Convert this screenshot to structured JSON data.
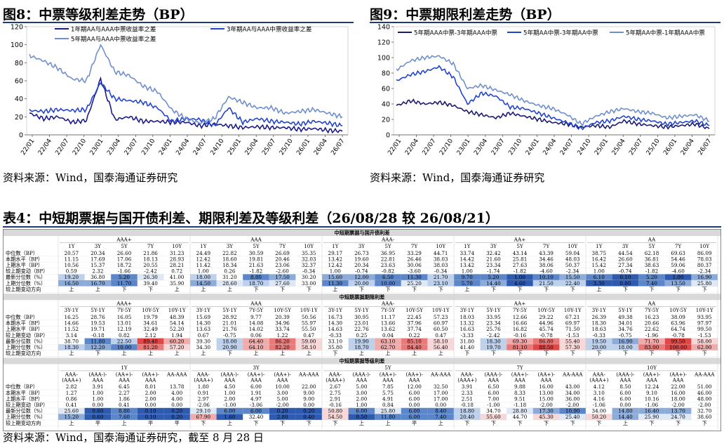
{
  "fig8": {
    "title": "图8：中票等级利差走势（BP）",
    "source": "资料来源：Wind，国泰海通证券研究",
    "chart_data": {
      "type": "line",
      "title": "",
      "xlabel": "",
      "ylabel": "",
      "ylim": [
        0,
        120
      ],
      "yticks": [
        0,
        20,
        40,
        60,
        80,
        100,
        120
      ],
      "xticks": [
        "22/01",
        "22/04",
        "22/07",
        "22/10",
        "23/01",
        "23/04",
        "23/07",
        "23/10",
        "24/01",
        "24/04",
        "24/07",
        "24/10",
        "25/01",
        "25/04",
        "25/07",
        "25/10",
        "26/01",
        "26/04",
        "26/07"
      ],
      "legend": "top",
      "series": [
        {
          "name": "1年期AA与AAA中票收益率之差",
          "color": "#1a1a8c",
          "values": [
            24,
            18,
            20,
            14,
            16,
            62,
            17,
            20,
            15,
            15,
            14,
            14,
            10,
            12,
            10,
            8,
            9,
            8,
            8,
            6,
            7,
            5,
            4
          ]
        },
        {
          "name": "3年期AA与AAA中票收益率之差",
          "color": "#2244cc",
          "values": [
            27,
            26,
            28,
            27,
            28,
            58,
            40,
            38,
            36,
            30,
            15,
            18,
            17,
            10,
            30,
            14,
            18,
            15,
            14,
            12,
            15,
            13,
            10
          ]
        },
        {
          "name": "5年期AA与AAA中票收益率之差",
          "color": "#6f8fcf",
          "values": [
            88,
            82,
            74,
            62,
            60,
            100,
            70,
            66,
            54,
            48,
            28,
            18,
            13,
            18,
            42,
            36,
            30,
            30,
            24,
            26,
            28,
            24,
            20
          ]
        }
      ]
    }
  },
  "fig9": {
    "title": "图9：中票期限利差走势（BP）",
    "source": "资料来源：Wind，国泰海通证券研究",
    "chart_data": {
      "type": "line",
      "title": "",
      "xlabel": "",
      "ylabel": "",
      "ylim": [
        0,
        140
      ],
      "yticks": [
        0,
        20,
        40,
        60,
        80,
        100,
        120,
        140
      ],
      "xticks": [
        "22/01",
        "22/04",
        "22/07",
        "22/10",
        "23/01",
        "23/04",
        "23/07",
        "23/10",
        "24/01",
        "24/04",
        "24/07",
        "24/10",
        "25/01",
        "25/04",
        "25/07",
        "25/10",
        "26/01",
        "26/04",
        "26/07"
      ],
      "legend": "top",
      "series": [
        {
          "name": "5年期AAA中票-3年期AAA中票",
          "color": "#1a1a6e",
          "values": [
            38,
            44,
            40,
            42,
            38,
            30,
            26,
            22,
            28,
            24,
            20,
            16,
            14,
            10,
            12,
            10,
            18,
            14,
            12,
            10,
            12,
            14,
            8
          ]
        },
        {
          "name": "5年期AA中票-3年期AA中票",
          "color": "#2244cc",
          "values": [
            70,
            78,
            82,
            88,
            75,
            40,
            54,
            50,
            36,
            34,
            28,
            22,
            16,
            8,
            16,
            18,
            24,
            20,
            18,
            14,
            16,
            18,
            12
          ]
        },
        {
          "name": "5年期AA中票-1年期AAA中票",
          "color": "#6f8fcf",
          "values": [
            84,
            96,
            100,
            102,
            92,
            60,
            64,
            58,
            52,
            44,
            38,
            34,
            26,
            14,
            24,
            30,
            34,
            30,
            28,
            22,
            24,
            26,
            18
          ]
        }
      ]
    }
  },
  "table4": {
    "title": "表4：中短期票据与国开债利差、期限利差及等级利差（26/08/28 较 26/08/21）",
    "source": "资料来源：Wind，国泰海通证券研究，截至 8 月 28 日",
    "sections": [
      {
        "header": "中短期票据与国开债利差",
        "groups": [
          "AAA+",
          "AAA",
          "AAA-",
          "AA+",
          "AA"
        ],
        "cols": [
          "1Y",
          "3Y",
          "5Y",
          "7Y",
          "10Y"
        ],
        "rows": [
          {
            "label": "中位数（BP）",
            "vals": [
              "20.57",
              "20.34",
              "26.60",
              "21.86",
              "31.23",
              "24.49",
              "22.82",
              "30.59",
              "26.69",
              "35.35",
              "29.17",
              "26.73",
              "36.95",
              "33.29",
              "44.71",
              "33.74",
              "32.42",
              "43.14",
              "43.39",
              "59.04",
              "38.75",
              "44.54",
              "62.18",
              "69.63",
              "86.09"
            ]
          },
          {
            "label": "本期水平（BP）",
            "vals": [
              "11.15",
              "17.69",
              "17.06",
              "18.13",
              "28.93",
              "12.42",
              "18.60",
              "19.81",
              "20.46",
              "32.03",
              "13.42",
              "19.60",
              "22.81",
              "26.46",
              "38.03",
              "14.42",
              "21.60",
              "25.81",
              "34.46",
              "48.03",
              "16.42",
              "26.60",
              "36.81",
              "54.46",
              "78.03"
            ]
          },
          {
            "label": "上期水平（BP）",
            "vals": [
              "10.56",
              "15.37",
              "18.72",
              "20.55",
              "28.21",
              "11.42",
              "18.34",
              "21.63",
              "23.06",
              "32.37",
              "12.42",
              "20.34",
              "23.63",
              "30.06",
              "38.03",
              "13.42",
              "23.34",
              "27.63",
              "38.06",
              "50.37",
              "15.42",
              "27.34",
              "38.63",
              "59.06",
              "80.37"
            ]
          },
          {
            "label": "较上期变动（BP）",
            "vals": [
              "0.59",
              "2.32",
              "-1.66",
              "-2.42",
              "0.72",
              "1.00",
              "0.26",
              "-1.82",
              "-2.60",
              "-0.34",
              "1.00",
              "-0.74",
              "-0.82",
              "-3.60",
              "-0.34",
              "1.00",
              "-1.74",
              "-1.82",
              "-4.60",
              "-2.34",
              "1.00",
              "-0.74",
              "-1.82",
              "-4.60",
              "-2.34"
            ]
          },
          {
            "label": "最新分位数（%）",
            "vals": [
              "19.20",
              "36.80",
              "5.20",
              "26.30",
              "41.00",
              "18.00",
              "31.20",
              "8.80",
              "17.50",
              "30.20",
              "15.60",
              "12.00",
              "6.50",
              "11.30",
              "21.70",
              "9.70",
              "5.20",
              "1.00",
              "10.10",
              "15.50",
              "6.10",
              "0.10",
              "5.20",
              "1.00",
              "16.90"
            ]
          },
          {
            "label": "上期分位数（%）",
            "vals": [
              "16.50",
              "16.70",
              "11.70",
              "39.40",
              "35.90",
              "14.50",
              "28.60",
              "18.70",
              "27.60",
              "33.00",
              "11.30",
              "20.00",
              "10.00",
              "25.20",
              "23.10",
              "5.70",
              "14.40",
              "4.60",
              "21.50",
              "22.40",
              "3.30",
              "0.80",
              "7.40",
              "13.50",
              "25.80"
            ]
          },
          {
            "label": "较上期变动方向",
            "vals": [
              "上",
              "上",
              "下",
              "下",
              "上",
              "上",
              "上",
              "下",
              "下",
              "下",
              "上",
              "下",
              "下",
              "下",
              "下",
              "上",
              "下",
              "下",
              "下",
              "下",
              "上",
              "下",
              "下",
              "下",
              "下"
            ]
          }
        ]
      },
      {
        "header": "中短期票据期限利差",
        "groups": [
          "AAA+",
          "AAA",
          "AAA-",
          "AA+",
          "AA"
        ],
        "cols": [
          "3Y-1Y",
          "5Y-1Y",
          "7Y-5Y",
          "10Y-5Y",
          "10Y-1Y"
        ],
        "rows": [
          {
            "label": "中位数（BP）",
            "vals": [
              "16.25",
              "28.76",
              "16.05",
              "19.79",
              "48.39",
              "15.69",
              "28.92",
              "9.77",
              "20.39",
              "50.56",
              "16.73",
              "30.95",
              "11.17",
              "22.45",
              "57.23",
              "18.03",
              "33.95",
              "12.66",
              "29.22",
              "67.21",
              "26.39",
              "49.38",
              "16.23",
              "38.09",
              "93.95"
            ]
          },
          {
            "label": "本期水平（BP）",
            "vals": [
              "14.66",
              "19.53",
              "13.01",
              "34.61",
              "54.14",
              "14.30",
              "21.01",
              "14.08",
              "34.96",
              "55.97",
              "14.30",
              "23.01",
              "13.66",
              "37.96",
              "60.97",
              "13.32",
              "23.34",
              "16.66",
              "44.96",
              "69.97",
              "18.30",
              "34.01",
              "20.66",
              "63.96",
              "97.97"
            ]
          },
          {
            "label": "上期水平（BP）",
            "vals": [
              "11.52",
              "19.71",
              "12.19",
              "32.49",
              "52.20",
              "13.63",
              "21.76",
              "14.02",
              "33.74",
              "55.50",
              "14.63",
              "22.76",
              "13.62",
              "37.74",
              "60.50",
              "16.63",
              "25.76",
              "16.82",
              "45.74",
              "71.50",
              "18.63",
              "34.76",
              "22.62",
              "64.74",
              "99.50"
            ]
          },
          {
            "label": "较上期变动（BP）",
            "vals": [
              "3.14",
              "-0.18",
              "0.82",
              "2.12",
              "1.94",
              "0.67",
              "-0.75",
              "0.06",
              "1.22",
              "0.47",
              "-0.33",
              "0.25",
              "0.04",
              "0.22",
              "0.47",
              "-3.33",
              "-2.42",
              "-0.16",
              "-0.78",
              "-1.53",
              "-0.33",
              "-0.75",
              "-1.96",
              "-0.78",
              "-1.53"
            ]
          },
          {
            "label": "最新分位数（%）",
            "vals": [
              "38.70",
              "11.80",
              "22.50",
              "89.40",
              "60.20",
              "39.30",
              "18.00",
              "64.40",
              "86.20",
              "59.00",
              "33.10",
              "19.90",
              "63.10",
              "85.10",
              "58.10",
              "31.80",
              "18.30",
              "69.30",
              "86.80",
              "55.40",
              "19.50",
              "16.90",
              "71.70",
              "99.50",
              "58.00"
            ]
          },
          {
            "label": "上期分位数（%）",
            "vals": [
              "18.30",
              "12.20",
              "10.00",
              "81.20",
              "57.20",
              "34.30",
              "20.90",
              "64.10",
              "82.20",
              "58.10",
              "35.80",
              "18.70",
              "62.70",
              "84.40",
              "56.40",
              "41.40",
              "19.70",
              "81.10",
              "88.50",
              "57.30",
              "20.00",
              "18.00",
              "83.00",
              "100.00",
              "62.00"
            ]
          },
          {
            "label": "较上期变动方向",
            "vals": [
              "上",
              "下",
              "上",
              "上",
              "上",
              "上",
              "下",
              "上",
              "上",
              "上",
              "下",
              "上",
              "上",
              "上",
              "上",
              "下",
              "下",
              "下",
              "下",
              "下",
              "下",
              "下",
              "下",
              "下",
              "下"
            ]
          }
        ]
      },
      {
        "header": "中短期票据等级利差",
        "groups": [
          "1Y",
          "3Y",
          "5Y",
          "7Y",
          "10Y"
        ],
        "cols": [
          "AAA-\n(AAA+)",
          "(AAA-)-\nAAA",
          "(AA+)-\nAAA",
          "(AA+)-\nAAA",
          "AA-AAA"
        ],
        "rows": [
          {
            "label": "中位数（BP）",
            "vals": [
              "2.82",
              "3.91",
              "6.45",
              "8.01",
              "13.78",
              "1.80",
              "4.50",
              "6.00",
              "10.00",
              "22.00",
              "2.67",
              "5.00",
              "7.85",
              "12.00",
              "32.50",
              "3.91",
              "6.50",
              "9.88",
              "16.00",
              "43.00",
              "4.12",
              "8.50",
              "12.24",
              "22.00",
              "51.00"
            ]
          },
          {
            "label": "本期水平（BP）",
            "vals": [
              "1.27",
              "1.00",
              "2.27",
              "2.00",
              "4.00",
              "0.91",
              "1.00",
              "1.91",
              "3.00",
              "9.00",
              "2.75",
              "3.00",
              "5.75",
              "6.00",
              "17.00",
              "2.33",
              "6.00",
              "8.33",
              "13.00",
              "34.00",
              "3.10",
              "6.00",
              "9.10",
              "16.00",
              "46.00"
            ]
          },
          {
            "label": "上期水平（BP）",
            "vals": [
              "0.86",
              "1.00",
              "1.86",
              "2.00",
              "4.00",
              "2.97",
              "2.00",
              "4.97",
              "5.00",
              "9.00",
              "2.91",
              "2.00",
              "4.91",
              "6.00",
              "17.00",
              "2.51",
              "7.00",
              "9.51",
              "15.00",
              "36.00",
              "4.16",
              "6.00",
              "10.16",
              "18.00",
              "48.00"
            ]
          },
          {
            "label": "较上期变动（BP）",
            "vals": [
              "0.41",
              "0.00",
              "0.41",
              "0.00",
              "0.00",
              "-2.06",
              "-1.00",
              "-3.06",
              "-2.00",
              "0.00",
              "-0.16",
              "1.00",
              "0.84",
              "0.00",
              "0.00",
              "-0.18",
              "-1.00",
              "-1.18",
              "-2.00",
              "-2.00",
              "-1.06",
              "0.00",
              "-1.06",
              "-2.00",
              "-2.00"
            ]
          },
          {
            "label": "最新分位数（%）",
            "vals": [
              "25.60",
              "0.60",
              "8.80",
              "0.10",
              "0.20",
              "29.10",
              "6.00",
              "6.00",
              "0.20",
              "0.20",
              "50.80",
              "6.00",
              "25.80",
              "6.00",
              "8.40",
              "18.80",
              "34.70",
              "28.80",
              "17.30",
              "10.90",
              "34.00",
              "14.80",
              "16.40",
              "13.70",
              "32.70"
            ]
          },
          {
            "label": "上期分位数（%）",
            "vals": [
              "15.20",
              "0.60",
              "7.60",
              "0.10",
              "0.20",
              "67.90",
              "1.60",
              "32.40",
              "2.80",
              "0.40",
              "54.50",
              "0.50",
              "11.80",
              "6.00",
              "7.40",
              "20.40",
              "55.60",
              "44.70",
              "45.30",
              "25.40",
              "50.20",
              "14.40",
              "25.90",
              "24.70",
              "38.60"
            ]
          },
          {
            "label": "较上期变动方向",
            "vals": [
              "上",
              "平",
              "上",
              "平",
              "平",
              "下",
              "上",
              "下",
              "下",
              "下",
              "下",
              "上",
              "上",
              "平",
              "上",
              "下",
              "下",
              "下",
              "下",
              "下",
              "下",
              "上",
              "下",
              "下",
              "下"
            ]
          }
        ]
      }
    ]
  }
}
